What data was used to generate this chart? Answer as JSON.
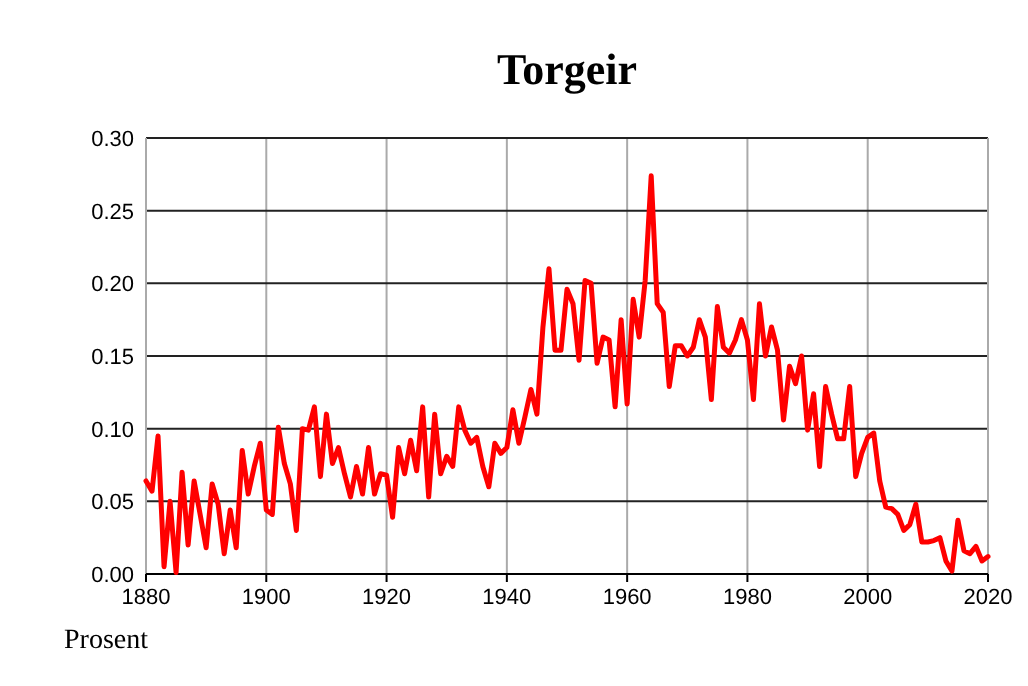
{
  "chart_data": {
    "type": "line",
    "title": "Torgeir",
    "ylabel": "Prosent",
    "x": [
      1880,
      1881,
      1882,
      1883,
      1884,
      1885,
      1886,
      1887,
      1888,
      1889,
      1890,
      1891,
      1892,
      1893,
      1894,
      1895,
      1896,
      1897,
      1898,
      1899,
      1900,
      1901,
      1902,
      1903,
      1904,
      1905,
      1906,
      1907,
      1908,
      1909,
      1910,
      1911,
      1912,
      1913,
      1914,
      1915,
      1916,
      1917,
      1918,
      1919,
      1920,
      1921,
      1922,
      1923,
      1924,
      1925,
      1926,
      1927,
      1928,
      1929,
      1930,
      1931,
      1932,
      1933,
      1934,
      1935,
      1936,
      1937,
      1938,
      1939,
      1940,
      1941,
      1942,
      1943,
      1944,
      1945,
      1946,
      1947,
      1948,
      1949,
      1950,
      1951,
      1952,
      1953,
      1954,
      1955,
      1956,
      1957,
      1958,
      1959,
      1960,
      1961,
      1962,
      1963,
      1964,
      1965,
      1966,
      1967,
      1968,
      1969,
      1970,
      1971,
      1972,
      1973,
      1974,
      1975,
      1976,
      1977,
      1978,
      1979,
      1980,
      1981,
      1982,
      1983,
      1984,
      1985,
      1986,
      1987,
      1988,
      1989,
      1990,
      1991,
      1992,
      1993,
      1994,
      1995,
      1996,
      1997,
      1998,
      1999,
      2000,
      2001,
      2002,
      2003,
      2004,
      2005,
      2006,
      2007,
      2008,
      2009,
      2010,
      2011,
      2012,
      2013,
      2014,
      2015,
      2016,
      2017,
      2018,
      2019,
      2020
    ],
    "series": [
      {
        "color": "#ff0000",
        "values": [
          0.064,
          0.057,
          0.095,
          0.005,
          0.05,
          0.001,
          0.07,
          0.02,
          0.064,
          0.041,
          0.018,
          0.062,
          0.048,
          0.014,
          0.044,
          0.018,
          0.085,
          0.055,
          0.074,
          0.09,
          0.044,
          0.041,
          0.101,
          0.076,
          0.062,
          0.03,
          0.1,
          0.099,
          0.115,
          0.067,
          0.11,
          0.076,
          0.087,
          0.069,
          0.053,
          0.074,
          0.055,
          0.087,
          0.055,
          0.069,
          0.068,
          0.039,
          0.087,
          0.069,
          0.092,
          0.071,
          0.115,
          0.053,
          0.11,
          0.069,
          0.081,
          0.074,
          0.115,
          0.099,
          0.09,
          0.094,
          0.074,
          0.06,
          0.09,
          0.083,
          0.087,
          0.113,
          0.09,
          0.108,
          0.127,
          0.11,
          0.17,
          0.21,
          0.154,
          0.154,
          0.196,
          0.186,
          0.147,
          0.202,
          0.2,
          0.145,
          0.163,
          0.161,
          0.115,
          0.175,
          0.117,
          0.189,
          0.163,
          0.202,
          0.274,
          0.186,
          0.18,
          0.129,
          0.157,
          0.157,
          0.15,
          0.156,
          0.175,
          0.163,
          0.12,
          0.184,
          0.156,
          0.152,
          0.161,
          0.175,
          0.161,
          0.12,
          0.186,
          0.15,
          0.17,
          0.154,
          0.106,
          0.143,
          0.131,
          0.15,
          0.099,
          0.124,
          0.074,
          0.129,
          0.11,
          0.093,
          0.093,
          0.129,
          0.067,
          0.083,
          0.094,
          0.097,
          0.064,
          0.046,
          0.045,
          0.041,
          0.03,
          0.034,
          0.048,
          0.022,
          0.022,
          0.023,
          0.025,
          0.009,
          0.002,
          0.037,
          0.016,
          0.014,
          0.019,
          0.009,
          0.012
        ]
      }
    ],
    "xlim": [
      1880,
      2020
    ],
    "xticks": [
      1880,
      1900,
      1920,
      1940,
      1960,
      1980,
      2000,
      2020
    ],
    "ylim": [
      0,
      0.3
    ],
    "yticks": [
      {
        "value": 0,
        "label": "0.00"
      },
      {
        "value": 0.05,
        "label": "0.05"
      },
      {
        "value": 0.1,
        "label": "0.10"
      },
      {
        "value": 0.15,
        "label": "0.15"
      },
      {
        "value": 0.2,
        "label": "0.20"
      },
      {
        "value": 0.25,
        "label": "0.25"
      },
      {
        "value": 0.3,
        "label": "0.30"
      }
    ],
    "grid": true,
    "marker": "none",
    "line_style": "solid"
  }
}
